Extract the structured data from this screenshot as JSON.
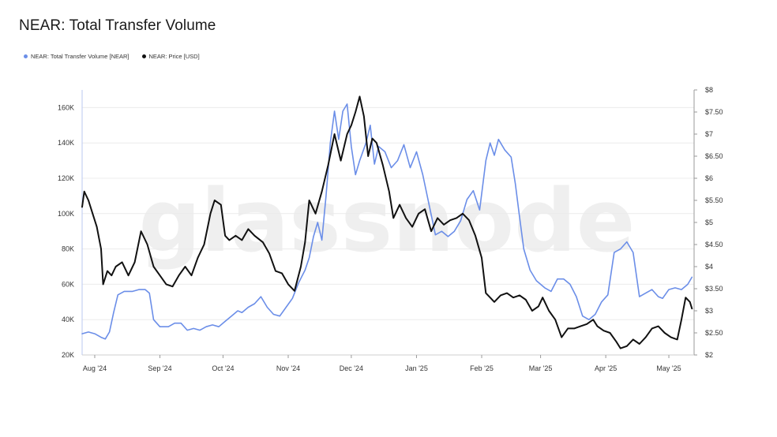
{
  "title": "NEAR: Total Transfer Volume",
  "legend": {
    "volume_label": "NEAR: Total Transfer Volume [NEAR]",
    "price_label": "NEAR: Price [USD]",
    "volume_color": "#6b8ee8",
    "price_color": "#111111"
  },
  "watermark": "glassnode",
  "chart_data": {
    "type": "line",
    "x_range": [
      "2024-07-26",
      "2025-05-13"
    ],
    "x_ticks": [
      {
        "date": "2024-08-01",
        "label": "Aug '24"
      },
      {
        "date": "2024-09-01",
        "label": "Sep '24"
      },
      {
        "date": "2024-10-01",
        "label": "Oct '24"
      },
      {
        "date": "2024-11-01",
        "label": "Nov '24"
      },
      {
        "date": "2024-12-01",
        "label": "Dec '24"
      },
      {
        "date": "2025-01-01",
        "label": "Jan '25"
      },
      {
        "date": "2025-02-01",
        "label": "Feb '25"
      },
      {
        "date": "2025-03-01",
        "label": "Mar '25"
      },
      {
        "date": "2025-04-01",
        "label": "Apr '25"
      },
      {
        "date": "2025-05-01",
        "label": "May '25"
      }
    ],
    "y_left": {
      "range": [
        20000,
        170000
      ],
      "ticks": [
        20000,
        40000,
        60000,
        80000,
        100000,
        120000,
        140000,
        160000
      ],
      "tick_labels": [
        "20K",
        "40K",
        "60K",
        "80K",
        "100K",
        "120K",
        "140K",
        "160K"
      ]
    },
    "y_right": {
      "range": [
        2,
        8
      ],
      "ticks": [
        2,
        2.5,
        3,
        3.5,
        4,
        4.5,
        5,
        5.5,
        6,
        6.5,
        7,
        7.5,
        8
      ],
      "tick_labels": [
        "$2",
        "$2.50",
        "$3",
        "$3.50",
        "$4",
        "$4.50",
        "$5",
        "$5.50",
        "$6",
        "$6.50",
        "$7",
        "$7.50",
        "$8"
      ]
    },
    "series": [
      {
        "name": "NEAR: Total Transfer Volume [NEAR]",
        "axis": "left",
        "points": [
          [
            "2024-07-26",
            32000
          ],
          [
            "2024-07-29",
            33000
          ],
          [
            "2024-08-01",
            32000
          ],
          [
            "2024-08-04",
            30000
          ],
          [
            "2024-08-06",
            29000
          ],
          [
            "2024-08-08",
            33000
          ],
          [
            "2024-08-10",
            44000
          ],
          [
            "2024-08-12",
            54000
          ],
          [
            "2024-08-15",
            56000
          ],
          [
            "2024-08-19",
            56000
          ],
          [
            "2024-08-22",
            57000
          ],
          [
            "2024-08-25",
            57000
          ],
          [
            "2024-08-27",
            55000
          ],
          [
            "2024-08-29",
            40000
          ],
          [
            "2024-09-01",
            36000
          ],
          [
            "2024-09-05",
            36000
          ],
          [
            "2024-09-08",
            38000
          ],
          [
            "2024-09-11",
            38000
          ],
          [
            "2024-09-14",
            34000
          ],
          [
            "2024-09-17",
            35000
          ],
          [
            "2024-09-20",
            34000
          ],
          [
            "2024-09-23",
            36000
          ],
          [
            "2024-09-26",
            37000
          ],
          [
            "2024-09-29",
            36000
          ],
          [
            "2024-10-02",
            39000
          ],
          [
            "2024-10-05",
            42000
          ],
          [
            "2024-10-08",
            45000
          ],
          [
            "2024-10-10",
            44000
          ],
          [
            "2024-10-13",
            47000
          ],
          [
            "2024-10-16",
            49000
          ],
          [
            "2024-10-19",
            53000
          ],
          [
            "2024-10-22",
            47000
          ],
          [
            "2024-10-25",
            43000
          ],
          [
            "2024-10-28",
            42000
          ],
          [
            "2024-10-31",
            47000
          ],
          [
            "2024-11-03",
            52000
          ],
          [
            "2024-11-06",
            61000
          ],
          [
            "2024-11-09",
            68000
          ],
          [
            "2024-11-11",
            75000
          ],
          [
            "2024-11-13",
            87000
          ],
          [
            "2024-11-15",
            95000
          ],
          [
            "2024-11-17",
            85000
          ],
          [
            "2024-11-19",
            110000
          ],
          [
            "2024-11-21",
            140000
          ],
          [
            "2024-11-23",
            158000
          ],
          [
            "2024-11-25",
            142000
          ],
          [
            "2024-11-27",
            158000
          ],
          [
            "2024-11-29",
            162000
          ],
          [
            "2024-12-01",
            138000
          ],
          [
            "2024-12-03",
            122000
          ],
          [
            "2024-12-05",
            130000
          ],
          [
            "2024-12-08",
            140000
          ],
          [
            "2024-12-10",
            150000
          ],
          [
            "2024-12-12",
            128000
          ],
          [
            "2024-12-14",
            138000
          ],
          [
            "2024-12-17",
            135000
          ],
          [
            "2024-12-20",
            126000
          ],
          [
            "2024-12-23",
            130000
          ],
          [
            "2024-12-26",
            139000
          ],
          [
            "2024-12-29",
            126000
          ],
          [
            "2025-01-01",
            135000
          ],
          [
            "2025-01-04",
            122000
          ],
          [
            "2025-01-07",
            105000
          ],
          [
            "2025-01-10",
            88000
          ],
          [
            "2025-01-13",
            90000
          ],
          [
            "2025-01-16",
            87000
          ],
          [
            "2025-01-19",
            90000
          ],
          [
            "2025-01-22",
            96000
          ],
          [
            "2025-01-25",
            108000
          ],
          [
            "2025-01-28",
            113000
          ],
          [
            "2025-01-31",
            102000
          ],
          [
            "2025-02-03",
            130000
          ],
          [
            "2025-02-05",
            140000
          ],
          [
            "2025-02-07",
            133000
          ],
          [
            "2025-02-09",
            142000
          ],
          [
            "2025-02-12",
            136000
          ],
          [
            "2025-02-15",
            132000
          ],
          [
            "2025-02-17",
            117000
          ],
          [
            "2025-02-19",
            98000
          ],
          [
            "2025-02-21",
            80000
          ],
          [
            "2025-02-24",
            68000
          ],
          [
            "2025-02-27",
            62000
          ],
          [
            "2025-03-03",
            58000
          ],
          [
            "2025-03-06",
            56000
          ],
          [
            "2025-03-09",
            63000
          ],
          [
            "2025-03-12",
            63000
          ],
          [
            "2025-03-15",
            60000
          ],
          [
            "2025-03-18",
            53000
          ],
          [
            "2025-03-21",
            42000
          ],
          [
            "2025-03-24",
            40000
          ],
          [
            "2025-03-27",
            43000
          ],
          [
            "2025-03-30",
            50000
          ],
          [
            "2025-04-02",
            54000
          ],
          [
            "2025-04-05",
            78000
          ],
          [
            "2025-04-08",
            80000
          ],
          [
            "2025-04-11",
            84000
          ],
          [
            "2025-04-14",
            78000
          ],
          [
            "2025-04-17",
            53000
          ],
          [
            "2025-04-20",
            55000
          ],
          [
            "2025-04-23",
            57000
          ],
          [
            "2025-04-26",
            53000
          ],
          [
            "2025-04-28",
            52000
          ],
          [
            "2025-05-01",
            57000
          ],
          [
            "2025-05-04",
            58000
          ],
          [
            "2025-05-07",
            57000
          ],
          [
            "2025-05-10",
            60000
          ],
          [
            "2025-05-12",
            64000
          ]
        ]
      },
      {
        "name": "NEAR: Price [USD]",
        "axis": "right",
        "points": [
          [
            "2024-07-26",
            5.35
          ],
          [
            "2024-07-27",
            5.7
          ],
          [
            "2024-07-29",
            5.5
          ],
          [
            "2024-07-31",
            5.2
          ],
          [
            "2024-08-02",
            4.9
          ],
          [
            "2024-08-04",
            4.4
          ],
          [
            "2024-08-05",
            3.6
          ],
          [
            "2024-08-07",
            3.9
          ],
          [
            "2024-08-09",
            3.8
          ],
          [
            "2024-08-11",
            4.0
          ],
          [
            "2024-08-14",
            4.1
          ],
          [
            "2024-08-17",
            3.8
          ],
          [
            "2024-08-20",
            4.1
          ],
          [
            "2024-08-23",
            4.8
          ],
          [
            "2024-08-26",
            4.5
          ],
          [
            "2024-08-29",
            4.0
          ],
          [
            "2024-09-01",
            3.8
          ],
          [
            "2024-09-04",
            3.6
          ],
          [
            "2024-09-07",
            3.55
          ],
          [
            "2024-09-10",
            3.8
          ],
          [
            "2024-09-13",
            4.0
          ],
          [
            "2024-09-16",
            3.8
          ],
          [
            "2024-09-19",
            4.2
          ],
          [
            "2024-09-22",
            4.5
          ],
          [
            "2024-09-25",
            5.2
          ],
          [
            "2024-09-27",
            5.5
          ],
          [
            "2024-09-30",
            5.4
          ],
          [
            "2024-10-02",
            4.7
          ],
          [
            "2024-10-04",
            4.6
          ],
          [
            "2024-10-07",
            4.7
          ],
          [
            "2024-10-10",
            4.6
          ],
          [
            "2024-10-13",
            4.85
          ],
          [
            "2024-10-16",
            4.7
          ],
          [
            "2024-10-20",
            4.55
          ],
          [
            "2024-10-23",
            4.3
          ],
          [
            "2024-10-26",
            3.9
          ],
          [
            "2024-10-29",
            3.85
          ],
          [
            "2024-11-01",
            3.6
          ],
          [
            "2024-11-04",
            3.45
          ],
          [
            "2024-11-07",
            4.0
          ],
          [
            "2024-11-09",
            4.55
          ],
          [
            "2024-11-11",
            5.5
          ],
          [
            "2024-11-14",
            5.2
          ],
          [
            "2024-11-17",
            5.7
          ],
          [
            "2024-11-20",
            6.3
          ],
          [
            "2024-11-23",
            7.0
          ],
          [
            "2024-11-26",
            6.4
          ],
          [
            "2024-11-29",
            7.0
          ],
          [
            "2024-12-01",
            7.2
          ],
          [
            "2024-12-03",
            7.5
          ],
          [
            "2024-12-05",
            7.85
          ],
          [
            "2024-12-07",
            7.4
          ],
          [
            "2024-12-09",
            6.5
          ],
          [
            "2024-12-11",
            6.9
          ],
          [
            "2024-12-13",
            6.8
          ],
          [
            "2024-12-16",
            6.3
          ],
          [
            "2024-12-19",
            5.7
          ],
          [
            "2024-12-21",
            5.1
          ],
          [
            "2024-12-24",
            5.4
          ],
          [
            "2024-12-27",
            5.1
          ],
          [
            "2024-12-30",
            4.9
          ],
          [
            "2025-01-02",
            5.2
          ],
          [
            "2025-01-05",
            5.3
          ],
          [
            "2025-01-08",
            4.8
          ],
          [
            "2025-01-11",
            5.1
          ],
          [
            "2025-01-14",
            4.95
          ],
          [
            "2025-01-17",
            5.05
          ],
          [
            "2025-01-20",
            5.1
          ],
          [
            "2025-01-23",
            5.2
          ],
          [
            "2025-01-26",
            5.05
          ],
          [
            "2025-01-29",
            4.7
          ],
          [
            "2025-02-01",
            4.2
          ],
          [
            "2025-02-03",
            3.4
          ],
          [
            "2025-02-05",
            3.3
          ],
          [
            "2025-02-07",
            3.2
          ],
          [
            "2025-02-10",
            3.35
          ],
          [
            "2025-02-13",
            3.4
          ],
          [
            "2025-02-16",
            3.3
          ],
          [
            "2025-02-19",
            3.35
          ],
          [
            "2025-02-22",
            3.25
          ],
          [
            "2025-02-25",
            3.0
          ],
          [
            "2025-02-28",
            3.1
          ],
          [
            "2025-03-02",
            3.3
          ],
          [
            "2025-03-05",
            3.0
          ],
          [
            "2025-03-08",
            2.8
          ],
          [
            "2025-03-11",
            2.4
          ],
          [
            "2025-03-14",
            2.6
          ],
          [
            "2025-03-17",
            2.6
          ],
          [
            "2025-03-20",
            2.65
          ],
          [
            "2025-03-23",
            2.7
          ],
          [
            "2025-03-26",
            2.8
          ],
          [
            "2025-03-28",
            2.65
          ],
          [
            "2025-03-31",
            2.55
          ],
          [
            "2025-04-03",
            2.5
          ],
          [
            "2025-04-06",
            2.3
          ],
          [
            "2025-04-08",
            2.15
          ],
          [
            "2025-04-11",
            2.2
          ],
          [
            "2025-04-14",
            2.35
          ],
          [
            "2025-04-17",
            2.25
          ],
          [
            "2025-04-20",
            2.4
          ],
          [
            "2025-04-23",
            2.6
          ],
          [
            "2025-04-26",
            2.65
          ],
          [
            "2025-04-29",
            2.5
          ],
          [
            "2025-05-02",
            2.4
          ],
          [
            "2025-05-05",
            2.35
          ],
          [
            "2025-05-07",
            2.8
          ],
          [
            "2025-05-09",
            3.3
          ],
          [
            "2025-05-11",
            3.2
          ],
          [
            "2025-05-12",
            3.05
          ]
        ]
      }
    ]
  }
}
